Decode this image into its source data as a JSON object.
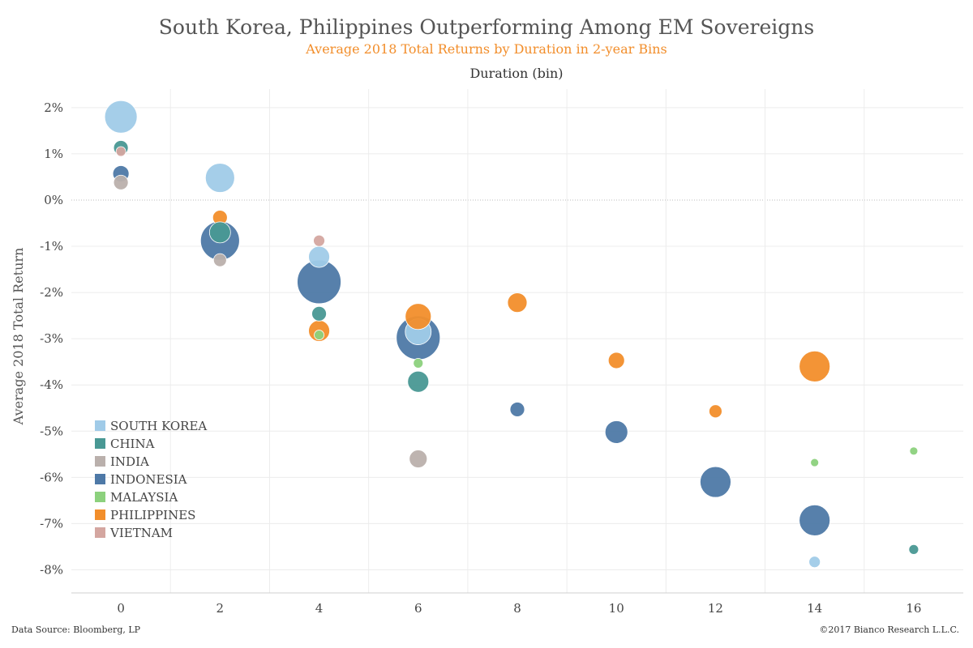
{
  "chart_data": {
    "type": "scatter",
    "title": "South Korea, Philippines Outperforming Among EM Sovereigns",
    "subtitle": "Average 2018 Total Returns by Duration in 2-year Bins",
    "xlabel": "Duration (bin)",
    "ylabel": "Average 2018 Total Return",
    "x_ticks": [
      0,
      2,
      4,
      6,
      8,
      10,
      12,
      14,
      16
    ],
    "y_ticks": [
      2,
      1,
      0,
      -1,
      -2,
      -3,
      -4,
      -5,
      -6,
      -7,
      -8
    ],
    "y_tick_labels": [
      "2%",
      "1%",
      "0%",
      "-1%",
      "-2%",
      "-3%",
      "-4%",
      "-5%",
      "-6%",
      "-7%",
      "-8%"
    ],
    "ylim": [
      -8.5,
      2.4
    ],
    "xlim": [
      -1,
      17
    ],
    "grid": true,
    "legend_position": "bottom-left",
    "series": [
      {
        "name": "SOUTH KOREA",
        "color": "#a0cbe8",
        "points": [
          {
            "x": 0,
            "y": 1.8,
            "size": 20
          },
          {
            "x": 2,
            "y": 0.48,
            "size": 18
          },
          {
            "x": 4,
            "y": -1.23,
            "size": 13
          },
          {
            "x": 6,
            "y": -2.85,
            "size": 16
          },
          {
            "x": 14,
            "y": -7.83,
            "size": 7
          }
        ]
      },
      {
        "name": "CHINA",
        "color": "#499894",
        "points": [
          {
            "x": 0,
            "y": 1.13,
            "size": 9
          },
          {
            "x": 2,
            "y": -0.7,
            "size": 13
          },
          {
            "x": 4,
            "y": -2.46,
            "size": 9
          },
          {
            "x": 6,
            "y": -3.93,
            "size": 13
          },
          {
            "x": 16,
            "y": -7.56,
            "size": 6
          }
        ]
      },
      {
        "name": "INDIA",
        "color": "#bab0ac",
        "points": [
          {
            "x": 0,
            "y": 0.38,
            "size": 9
          },
          {
            "x": 2,
            "y": -1.3,
            "size": 8
          },
          {
            "x": 6,
            "y": -5.6,
            "size": 11
          }
        ]
      },
      {
        "name": "INDONESIA",
        "color": "#4e79a7",
        "points": [
          {
            "x": 0,
            "y": 0.57,
            "size": 10
          },
          {
            "x": 2,
            "y": -0.88,
            "size": 24
          },
          {
            "x": 4,
            "y": -1.77,
            "size": 27
          },
          {
            "x": 6,
            "y": -2.98,
            "size": 27
          },
          {
            "x": 8,
            "y": -4.53,
            "size": 9
          },
          {
            "x": 10,
            "y": -5.02,
            "size": 14
          },
          {
            "x": 12,
            "y": -6.1,
            "size": 19
          },
          {
            "x": 14,
            "y": -6.93,
            "size": 19
          }
        ]
      },
      {
        "name": "MALAYSIA",
        "color": "#8cd17d",
        "points": [
          {
            "x": 4,
            "y": -2.92,
            "size": 6
          },
          {
            "x": 6,
            "y": -3.53,
            "size": 6
          },
          {
            "x": 14,
            "y": -5.68,
            "size": 5
          },
          {
            "x": 16,
            "y": -5.43,
            "size": 5
          }
        ]
      },
      {
        "name": "PHILIPPINES",
        "color": "#f28e2b",
        "points": [
          {
            "x": 2,
            "y": -0.38,
            "size": 9
          },
          {
            "x": 4,
            "y": -2.83,
            "size": 13
          },
          {
            "x": 6,
            "y": -2.52,
            "size": 16
          },
          {
            "x": 8,
            "y": -2.22,
            "size": 12
          },
          {
            "x": 10,
            "y": -3.47,
            "size": 10
          },
          {
            "x": 12,
            "y": -4.57,
            "size": 8
          },
          {
            "x": 14,
            "y": -3.6,
            "size": 19
          }
        ]
      },
      {
        "name": "VIETNAM",
        "color": "#d4a6a0",
        "points": [
          {
            "x": 0,
            "y": 1.05,
            "size": 6
          },
          {
            "x": 4,
            "y": -0.88,
            "size": 7
          }
        ]
      }
    ],
    "draw_order": [
      "INDONESIA",
      "SOUTH KOREA",
      "PHILIPPINES",
      "CHINA",
      "INDIA",
      "MALAYSIA",
      "VIETNAM"
    ],
    "legend_order": [
      "SOUTH KOREA",
      "CHINA",
      "INDIA",
      "INDONESIA",
      "MALAYSIA",
      "PHILIPPINES",
      "VIETNAM"
    ]
  },
  "footer": {
    "source": "Data Source: Bloomberg, LP",
    "copyright": "©2017 Bianco Research L.L.C."
  }
}
